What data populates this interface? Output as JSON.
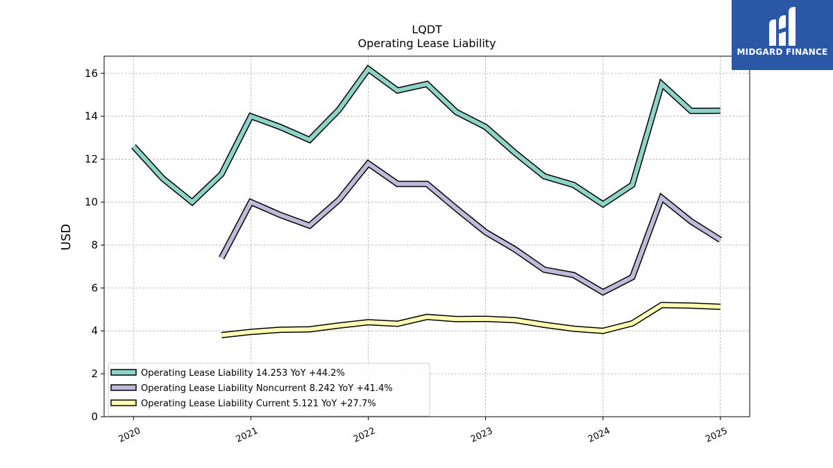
{
  "chart_data": {
    "type": "line",
    "title": "LQDT",
    "subtitle": "Operating Lease Liability",
    "ylabel": "USD",
    "xlabel": "",
    "ylim": [
      0,
      16.8
    ],
    "xlim": [
      2019.75,
      2025.25
    ],
    "yticks": [
      0,
      2,
      4,
      6,
      8,
      10,
      12,
      14,
      16
    ],
    "xticks": [
      "2020",
      "2021",
      "2022",
      "2023",
      "2024",
      "2025"
    ],
    "grid": true,
    "legend_position": "lower-left",
    "series": [
      {
        "name": "Operating Lease Liability",
        "legend": "Operating Lease Liability  14.253 YoY +44.2%",
        "color": "#8dd3c7",
        "x": [
          2020.0,
          2020.25,
          2020.5,
          2020.75,
          2021.0,
          2021.25,
          2021.5,
          2021.75,
          2022.0,
          2022.25,
          2022.5,
          2022.75,
          2023.0,
          2023.25,
          2023.5,
          2023.75,
          2024.0,
          2024.25,
          2024.5,
          2024.75,
          2025.0
        ],
        "values": [
          12.6,
          11.1,
          10.0,
          11.3,
          14.0,
          13.5,
          12.9,
          14.3,
          16.2,
          15.2,
          15.5,
          14.2,
          13.5,
          12.3,
          11.2,
          10.8,
          9.9,
          10.8,
          15.5,
          14.25,
          14.253
        ]
      },
      {
        "name": "Operating Lease Liability Noncurrent",
        "legend": "Operating Lease Liability Noncurrent  8.242 YoY +41.4%",
        "color": "#bebada",
        "x": [
          2020.75,
          2021.0,
          2021.25,
          2021.5,
          2021.75,
          2022.0,
          2022.25,
          2022.5,
          2022.75,
          2023.0,
          2023.25,
          2023.5,
          2023.75,
          2024.0,
          2024.25,
          2024.5,
          2024.75,
          2025.0
        ],
        "values": [
          7.4,
          10.0,
          9.4,
          8.9,
          10.1,
          11.8,
          10.85,
          10.85,
          9.7,
          8.6,
          7.8,
          6.85,
          6.6,
          5.8,
          6.5,
          10.2,
          9.1,
          8.242
        ]
      },
      {
        "name": "Operating Lease Liability Current",
        "legend": "Operating Lease Liability Current  5.121 YoY +27.7%",
        "color": "#ffffb3",
        "x": [
          2020.75,
          2021.0,
          2021.25,
          2021.5,
          2021.75,
          2022.0,
          2022.25,
          2022.5,
          2022.75,
          2023.0,
          2023.25,
          2023.5,
          2023.75,
          2024.0,
          2024.25,
          2024.5,
          2024.75,
          2025.0
        ],
        "values": [
          3.8,
          3.95,
          4.05,
          4.07,
          4.25,
          4.4,
          4.33,
          4.65,
          4.55,
          4.56,
          4.5,
          4.28,
          4.1,
          4.0,
          4.35,
          5.2,
          5.18,
          5.121
        ]
      }
    ]
  },
  "logo": {
    "text": "MIDGARD FINANCE",
    "background": "#2a58a6"
  }
}
